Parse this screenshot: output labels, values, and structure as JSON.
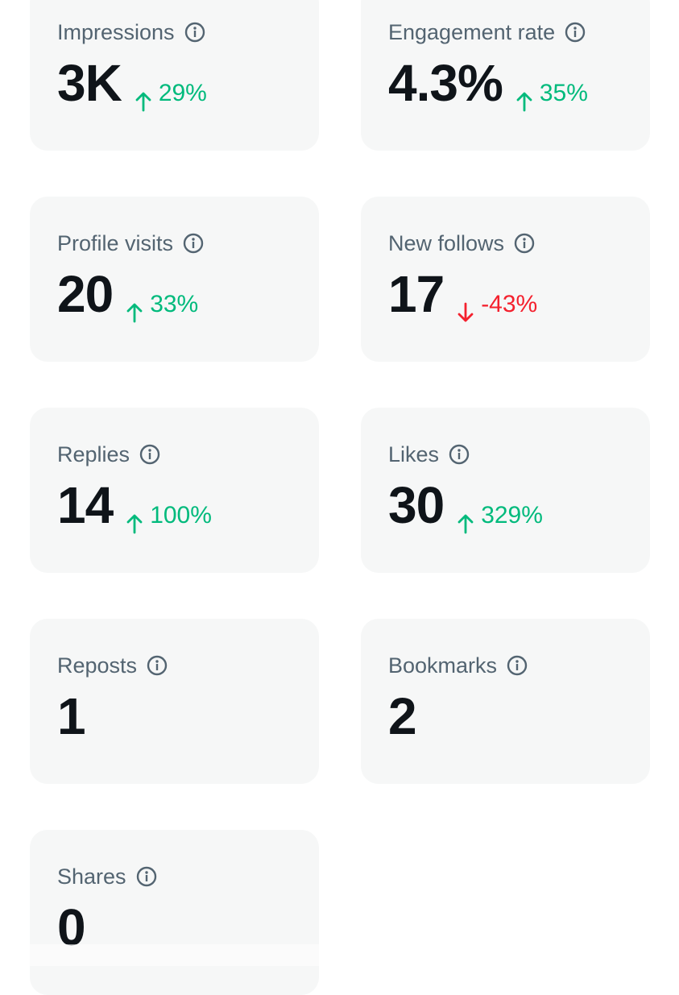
{
  "cards": [
    {
      "label": "Impressions",
      "value": "3K",
      "change": "29%",
      "direction": "up"
    },
    {
      "label": "Engagement rate",
      "value": "4.3%",
      "change": "35%",
      "direction": "up"
    },
    {
      "label": "Profile visits",
      "value": "20",
      "change": "33%",
      "direction": "up"
    },
    {
      "label": "New follows",
      "value": "17",
      "change": "-43%",
      "direction": "down"
    },
    {
      "label": "Replies",
      "value": "14",
      "change": "100%",
      "direction": "up"
    },
    {
      "label": "Likes",
      "value": "30",
      "change": "329%",
      "direction": "up"
    },
    {
      "label": "Reposts",
      "value": "1"
    },
    {
      "label": "Bookmarks",
      "value": "2"
    },
    {
      "label": "Shares",
      "value": "0"
    }
  ]
}
